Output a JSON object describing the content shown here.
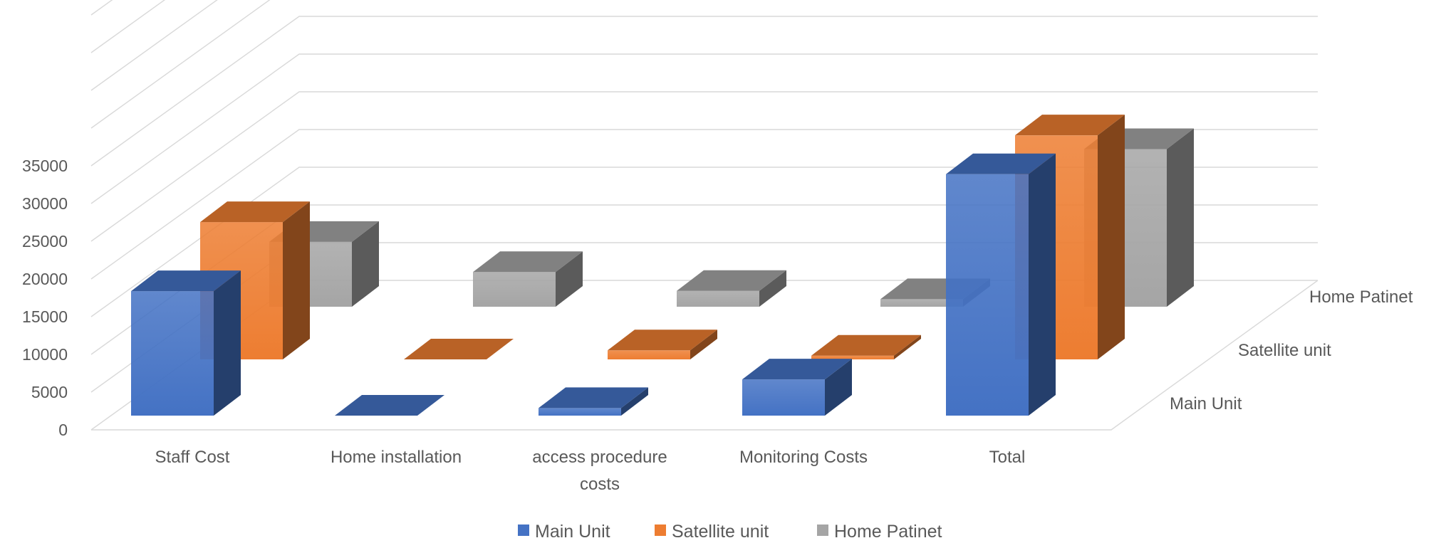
{
  "chart_data": {
    "type": "bar",
    "subtype": "3d-column",
    "title": "",
    "xlabel": "",
    "ylabel": "",
    "ylim": [
      0,
      35000
    ],
    "y_ticks": [
      0,
      5000,
      10000,
      15000,
      20000,
      25000,
      30000,
      35000
    ],
    "categories": [
      [
        "Staff Cost"
      ],
      [
        "Home installation"
      ],
      [
        "access procedure",
        "costs"
      ],
      [
        "Monitoring Costs"
      ],
      [
        "Total"
      ]
    ],
    "series": [
      {
        "name": "Main Unit",
        "values": [
          16500,
          0,
          1000,
          4800,
          32000
        ]
      },
      {
        "name": "Satellite unit",
        "values": [
          18200,
          0,
          1200,
          500,
          29700
        ]
      },
      {
        "name": "Home Patinet",
        "values": [
          8600,
          4600,
          2100,
          1000,
          20900
        ]
      }
    ],
    "depth_axis": [
      "Main Unit",
      "Satellite unit",
      "Home Patinet"
    ],
    "grid": true,
    "legend_position": "bottom",
    "colors": {
      "Main Unit": "#4472C4",
      "Satellite unit": "#ED7D31",
      "Home Patinet": "#A5A5A5",
      "gridline": "#D9D9D9",
      "text": "#595959"
    }
  }
}
